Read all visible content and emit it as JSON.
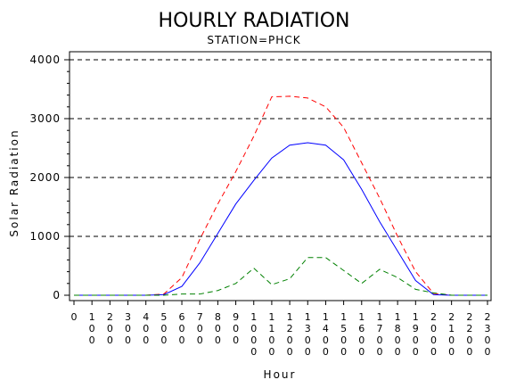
{
  "chart_data": {
    "type": "line",
    "title": "HOURLY RADIATION",
    "subtitle": "STATION=PHCK",
    "xlabel": "Hour",
    "ylabel": "Solar Radiation",
    "x_tick_labels": [
      "0",
      "100",
      "200",
      "300",
      "400",
      "500",
      "600",
      "700",
      "800",
      "900",
      "1000",
      "1100",
      "1200",
      "1300",
      "1400",
      "1500",
      "1600",
      "1700",
      "1800",
      "1900",
      "2000",
      "2100",
      "2200",
      "2300"
    ],
    "x": [
      0,
      100,
      200,
      300,
      400,
      500,
      600,
      700,
      800,
      900,
      1000,
      1100,
      1200,
      1300,
      1400,
      1500,
      1600,
      1700,
      1800,
      1900,
      2000,
      2100,
      2200,
      2300
    ],
    "xlim": [
      0,
      2300
    ],
    "y_ticks": [
      0,
      1000,
      2000,
      3000,
      4000
    ],
    "ylim": [
      0,
      4000
    ],
    "grid": "horizontal dashed at major y ticks",
    "series": [
      {
        "color": "#ff0000",
        "style": "dashed",
        "values": [
          0,
          0,
          0,
          0,
          0,
          20,
          300,
          950,
          1550,
          2100,
          2700,
          3370,
          3380,
          3350,
          3200,
          2850,
          2250,
          1650,
          1000,
          400,
          30,
          0,
          0,
          0
        ]
      },
      {
        "color": "#0000ff",
        "style": "solid",
        "values": [
          0,
          0,
          0,
          0,
          0,
          10,
          150,
          550,
          1050,
          1550,
          1950,
          2330,
          2550,
          2590,
          2550,
          2300,
          1800,
          1250,
          750,
          250,
          10,
          0,
          0,
          0
        ]
      },
      {
        "color": "#008000",
        "style": "dashed",
        "values": [
          0,
          0,
          0,
          0,
          0,
          0,
          20,
          20,
          80,
          200,
          460,
          180,
          280,
          640,
          640,
          420,
          200,
          440,
          300,
          100,
          40,
          0,
          0,
          0
        ]
      }
    ]
  }
}
